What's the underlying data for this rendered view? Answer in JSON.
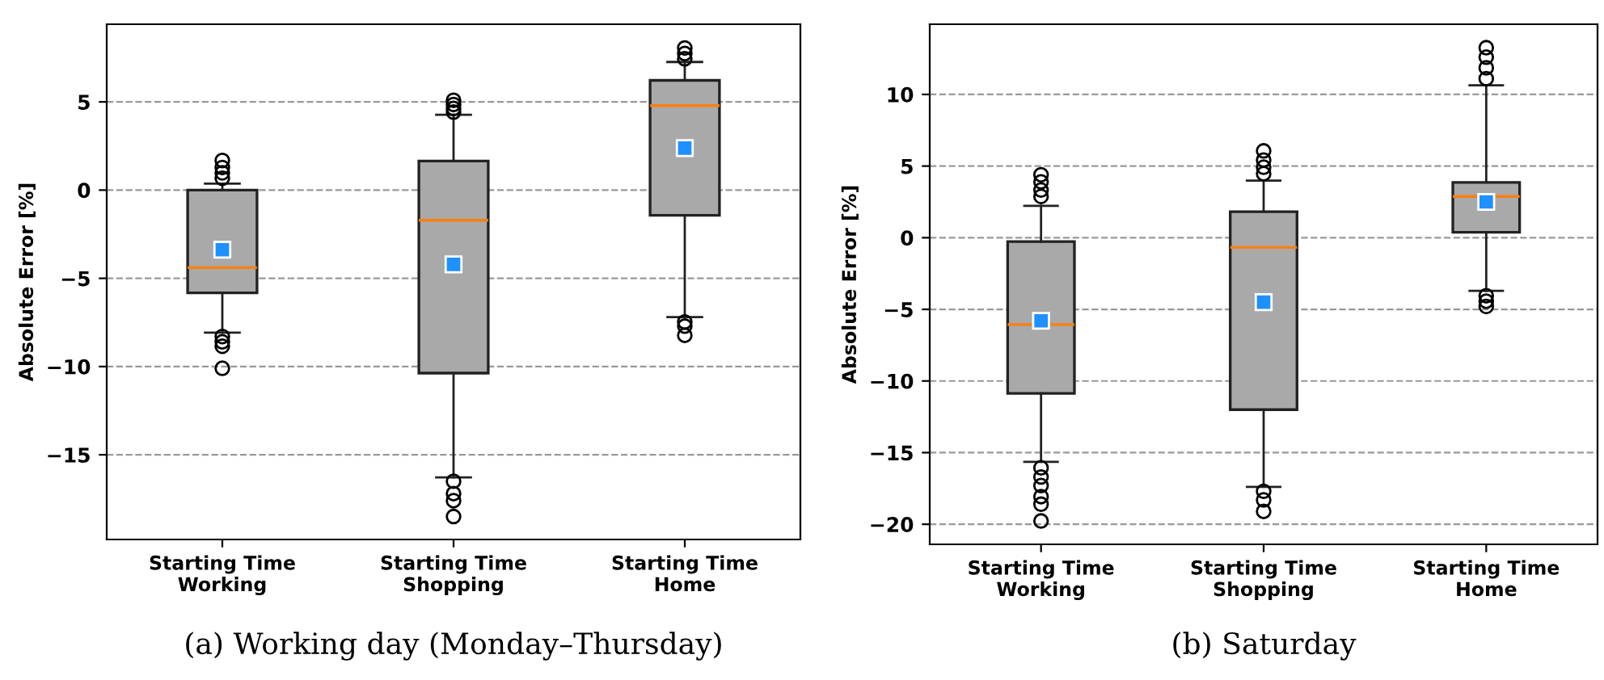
{
  "chart_data": [
    {
      "type": "box",
      "categories": [
        "Starting Time\nWorking",
        "Starting Time\nShopping",
        "Starting Time\nHome"
      ],
      "ylabel": "Absolute Error [%]",
      "ylim": [
        -19.8,
        9.4
      ],
      "yticks": [
        -15,
        -10,
        -5,
        0,
        5
      ],
      "grid": "y",
      "series": [
        {
          "color": "#a9a9a9",
          "boxes": [
            {
              "low": -8.08,
              "q1": -5.82,
              "median": -4.39,
              "q3": 0,
              "high": 0.37,
              "mean": -3.38,
              "outliers": [
                1.68,
                1.28,
                0.98,
                0.67,
                -8.3,
                -8.6,
                -8.85,
                -10.1
              ]
            },
            {
              "low": -16.28,
              "q1": -10.37,
              "median": -1.71,
              "q3": 1.65,
              "high": 4.27,
              "mean": -4.21,
              "outliers": [
                5.09,
                4.85,
                4.63,
                4.42,
                -16.5,
                -17.2,
                -17.6,
                -18.5
              ]
            },
            {
              "low": -7.2,
              "q1": -1.43,
              "median": 4.79,
              "q3": 6.22,
              "high": 7.26,
              "mean": 2.38,
              "outliers": [
                8.05,
                7.74,
                7.44,
                -7.47,
                -7.71,
                -8.23
              ]
            }
          ]
        }
      ],
      "annotations": [
        "(a) Working day (Monday–Thursday)"
      ]
    },
    {
      "type": "box",
      "categories": [
        "Starting Time\nWorking",
        "Starting Time\nShopping",
        "Starting Time\nHome"
      ],
      "ylabel": "Absolute Error [%]",
      "ylim": [
        -21.4,
        14.9
      ],
      "yticks": [
        -20,
        -15,
        -10,
        -5,
        0,
        5,
        10
      ],
      "grid": "y",
      "series": [
        {
          "color": "#a9a9a9",
          "boxes": [
            {
              "low": -15.64,
              "q1": -10.87,
              "median": -6.06,
              "q3": -0.27,
              "high": 2.23,
              "mean": -5.8,
              "outliers": [
                4.39,
                3.9,
                3.33,
                2.88,
                -16.06,
                -16.7,
                -17.3,
                -18.07,
                -18.6,
                -19.77
              ]
            },
            {
              "low": -17.39,
              "q1": -12.0,
              "median": -0.68,
              "q3": 1.82,
              "high": 3.98,
              "mean": -4.5,
              "outliers": [
                6.06,
                5.42,
                4.92,
                4.47,
                -17.7,
                -18.3,
                -19.1
              ]
            },
            {
              "low": -3.71,
              "q1": 0.38,
              "median": 2.88,
              "q3": 3.86,
              "high": 10.64,
              "mean": 2.5,
              "outliers": [
                13.26,
                12.6,
                11.86,
                11.1,
                -4.05,
                -4.43,
                -4.8
              ]
            }
          ]
        }
      ],
      "annotations": [
        "(b) Saturday"
      ]
    }
  ]
}
